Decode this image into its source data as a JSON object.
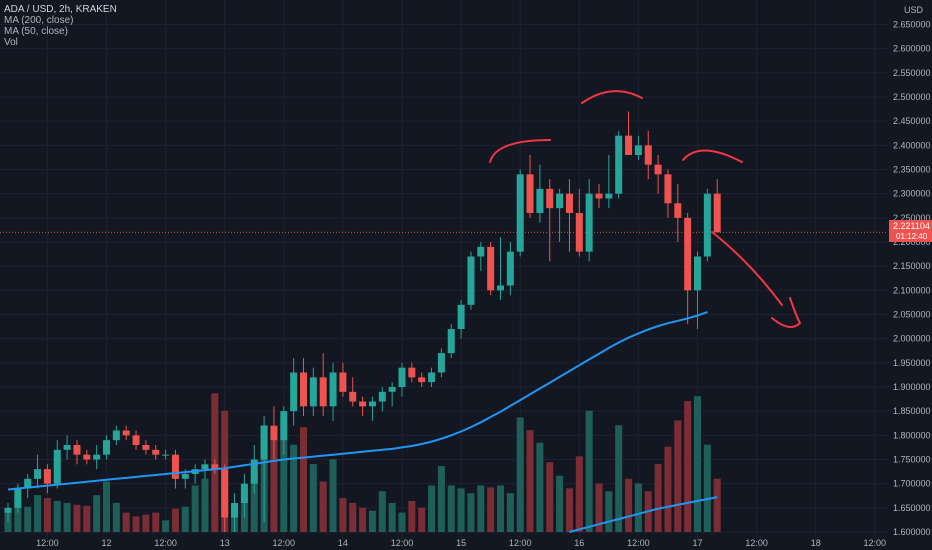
{
  "legend": {
    "symbol": "ADA / USD, 2h, KRAKEN",
    "ma200": "MA (200, close)",
    "ma50": "MA (50, close)",
    "vol": "Vol"
  },
  "price_axis": {
    "currency": "USD",
    "current_price": "2.221104",
    "countdown": "01:12:40"
  },
  "colors": {
    "background": "#131722",
    "up": "#26a69a",
    "down": "#ef5350",
    "vol_up": "#1f5f59",
    "vol_down": "#7a2d35",
    "ma": "#2196f3",
    "drawing": "#f23645",
    "grid": "#1e2230"
  },
  "chart_data": {
    "type": "candlestick",
    "symbol": "ADA / USD",
    "interval": "2h",
    "exchange": "KRAKEN",
    "y_ticks": [
      1.6,
      1.65,
      1.7,
      1.75,
      1.8,
      1.85,
      1.9,
      1.95,
      2.0,
      2.05,
      2.1,
      2.15,
      2.2,
      2.25,
      2.3,
      2.35,
      2.4,
      2.45,
      2.5,
      2.55,
      2.6,
      2.65
    ],
    "ylim": [
      1.6,
      2.68
    ],
    "x_ticks": [
      {
        "i": 4,
        "label": "12:00"
      },
      {
        "i": 10,
        "label": "12"
      },
      {
        "i": 16,
        "label": "12:00"
      },
      {
        "i": 22,
        "label": "13"
      },
      {
        "i": 28,
        "label": "12:00"
      },
      {
        "i": 34,
        "label": "14"
      },
      {
        "i": 40,
        "label": "12:00"
      },
      {
        "i": 46,
        "label": "15"
      },
      {
        "i": 52,
        "label": "12:00"
      },
      {
        "i": 58,
        "label": "16"
      },
      {
        "i": 64,
        "label": "12:00"
      },
      {
        "i": 70,
        "label": "17"
      },
      {
        "i": 76,
        "label": "12:00"
      },
      {
        "i": 82,
        "label": "18"
      },
      {
        "i": 88,
        "label": "12:00"
      }
    ],
    "candles": [
      [
        1.64,
        1.66,
        1.62,
        1.65,
        22
      ],
      [
        1.65,
        1.7,
        1.64,
        1.69,
        28
      ],
      [
        1.69,
        1.72,
        1.67,
        1.71,
        26
      ],
      [
        1.71,
        1.76,
        1.69,
        1.73,
        38
      ],
      [
        1.73,
        1.74,
        1.68,
        1.7,
        35
      ],
      [
        1.7,
        1.79,
        1.69,
        1.77,
        32
      ],
      [
        1.77,
        1.8,
        1.75,
        1.78,
        30
      ],
      [
        1.78,
        1.79,
        1.74,
        1.76,
        28
      ],
      [
        1.76,
        1.77,
        1.74,
        1.75,
        27
      ],
      [
        1.75,
        1.78,
        1.73,
        1.76,
        38
      ],
      [
        1.76,
        1.8,
        1.75,
        1.79,
        52
      ],
      [
        1.79,
        1.82,
        1.78,
        1.81,
        30
      ],
      [
        1.81,
        1.82,
        1.79,
        1.8,
        20
      ],
      [
        1.8,
        1.81,
        1.77,
        1.78,
        16
      ],
      [
        1.78,
        1.79,
        1.76,
        1.77,
        18
      ],
      [
        1.77,
        1.78,
        1.75,
        1.76,
        20
      ],
      [
        1.76,
        1.77,
        1.75,
        1.76,
        12
      ],
      [
        1.76,
        1.77,
        1.69,
        1.71,
        24
      ],
      [
        1.71,
        1.73,
        1.69,
        1.72,
        26
      ],
      [
        1.72,
        1.74,
        1.7,
        1.73,
        48
      ],
      [
        1.73,
        1.75,
        1.71,
        1.74,
        55
      ],
      [
        1.74,
        1.75,
        1.72,
        1.73,
        143
      ],
      [
        1.73,
        1.74,
        1.6,
        1.63,
        125
      ],
      [
        1.63,
        1.68,
        1.6,
        1.66,
        28
      ],
      [
        1.66,
        1.72,
        1.63,
        1.7,
        30
      ],
      [
        1.7,
        1.78,
        1.68,
        1.75,
        60
      ],
      [
        1.75,
        1.84,
        1.62,
        1.82,
        110
      ],
      [
        1.82,
        1.86,
        1.75,
        1.79,
        95
      ],
      [
        1.79,
        1.86,
        1.76,
        1.85,
        95
      ],
      [
        1.85,
        1.96,
        1.82,
        1.93,
        90
      ],
      [
        1.93,
        1.96,
        1.84,
        1.86,
        108
      ],
      [
        1.86,
        1.94,
        1.84,
        1.92,
        70
      ],
      [
        1.92,
        1.97,
        1.84,
        1.86,
        52
      ],
      [
        1.86,
        1.95,
        1.83,
        1.93,
        75
      ],
      [
        1.93,
        1.95,
        1.88,
        1.89,
        35
      ],
      [
        1.89,
        1.92,
        1.86,
        1.87,
        30
      ],
      [
        1.87,
        1.88,
        1.84,
        1.86,
        25
      ],
      [
        1.86,
        1.88,
        1.83,
        1.87,
        22
      ],
      [
        1.87,
        1.9,
        1.85,
        1.89,
        42
      ],
      [
        1.89,
        1.91,
        1.86,
        1.9,
        30
      ],
      [
        1.9,
        1.95,
        1.88,
        1.94,
        20
      ],
      [
        1.94,
        1.95,
        1.91,
        1.92,
        32
      ],
      [
        1.92,
        1.93,
        1.9,
        1.91,
        25
      ],
      [
        1.91,
        1.94,
        1.9,
        1.93,
        48
      ],
      [
        1.93,
        1.98,
        1.92,
        1.97,
        68
      ],
      [
        1.97,
        2.03,
        1.96,
        2.02,
        48
      ],
      [
        2.02,
        2.08,
        2.0,
        2.07,
        45
      ],
      [
        2.07,
        2.18,
        2.06,
        2.17,
        40
      ],
      [
        2.17,
        2.2,
        2.14,
        2.19,
        48
      ],
      [
        2.19,
        2.2,
        2.09,
        2.1,
        46
      ],
      [
        2.1,
        2.21,
        2.08,
        2.11,
        48
      ],
      [
        2.11,
        2.2,
        2.09,
        2.18,
        40
      ],
      [
        2.18,
        2.35,
        2.17,
        2.34,
        118
      ],
      [
        2.34,
        2.38,
        2.25,
        2.26,
        105
      ],
      [
        2.26,
        2.36,
        2.24,
        2.31,
        92
      ],
      [
        2.31,
        2.33,
        2.16,
        2.27,
        72
      ],
      [
        2.27,
        2.31,
        2.2,
        2.3,
        58
      ],
      [
        2.3,
        2.33,
        2.18,
        2.26,
        45
      ],
      [
        2.26,
        2.31,
        2.17,
        2.18,
        78
      ],
      [
        2.18,
        2.33,
        2.16,
        2.3,
        125
      ],
      [
        2.3,
        2.32,
        2.27,
        2.29,
        50
      ],
      [
        2.29,
        2.38,
        2.27,
        2.3,
        42
      ],
      [
        2.3,
        2.43,
        2.29,
        2.42,
        110
      ],
      [
        2.42,
        2.47,
        2.38,
        2.38,
        55
      ],
      [
        2.38,
        2.42,
        2.37,
        2.4,
        50
      ],
      [
        2.4,
        2.43,
        2.33,
        2.36,
        42
      ],
      [
        2.36,
        2.38,
        2.3,
        2.34,
        70
      ],
      [
        2.34,
        2.35,
        2.25,
        2.28,
        88
      ],
      [
        2.28,
        2.32,
        2.2,
        2.25,
        115
      ],
      [
        2.25,
        2.26,
        2.03,
        2.1,
        135
      ],
      [
        2.1,
        2.18,
        2.02,
        2.17,
        140
      ],
      [
        2.17,
        2.31,
        2.16,
        2.3,
        90
      ],
      [
        2.3,
        2.33,
        2.22,
        2.22,
        55
      ]
    ],
    "ma_upper": [
      1.688,
      1.69,
      1.692,
      1.694,
      1.696,
      1.698,
      1.7,
      1.702,
      1.704,
      1.706,
      1.708,
      1.71,
      1.712,
      1.714,
      1.716,
      1.718,
      1.72,
      1.722,
      1.724,
      1.726,
      1.728,
      1.73,
      1.732,
      1.735,
      1.738,
      1.741,
      1.744,
      1.747,
      1.75,
      1.752,
      1.754,
      1.756,
      1.758,
      1.76,
      1.762,
      1.764,
      1.766,
      1.768,
      1.77,
      1.772,
      1.775,
      1.778,
      1.782,
      1.787,
      1.793,
      1.8,
      1.808,
      1.817,
      1.827,
      1.838,
      1.849,
      1.861,
      1.873,
      1.885,
      1.897,
      1.909,
      1.921,
      1.933,
      1.945,
      1.957,
      1.969,
      1.981,
      1.992,
      2.002,
      2.011,
      2.019,
      2.026,
      2.032,
      2.037,
      2.042,
      2.048,
      2.055
    ],
    "ma_lower_vol": [
      {
        "i": 57,
        "v": 0
      },
      {
        "i": 60,
        "v": 8
      },
      {
        "i": 63,
        "v": 16
      },
      {
        "i": 66,
        "v": 24
      },
      {
        "i": 69,
        "v": 30
      },
      {
        "i": 72,
        "v": 36
      }
    ],
    "drawings": [
      "M490 162 Q496 140 550 140",
      "M582 103 Q612 82 642 98",
      "M683 160 Q700 140 742 162",
      "M712 232 Q750 262 782 305 M790 298 Q797 318 800 323 Q790 333 772 318"
    ]
  }
}
